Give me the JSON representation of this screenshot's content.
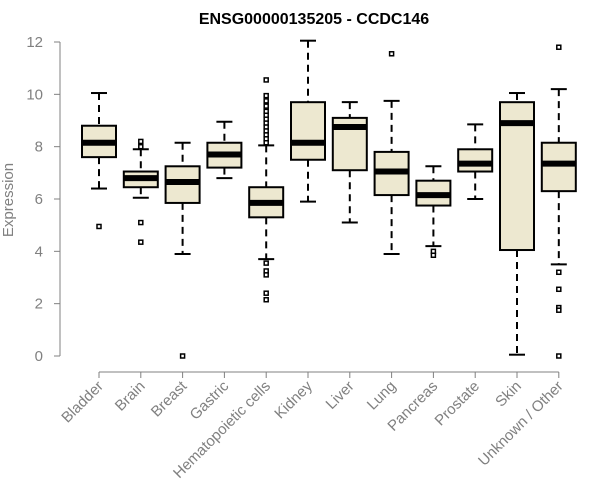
{
  "chart_data": {
    "type": "box",
    "title": "ENSG00000135205 - CCDC146",
    "xlabel": "",
    "ylabel": "Expression",
    "ylim": [
      0,
      12
    ],
    "yticks": [
      0,
      2,
      4,
      6,
      8,
      10,
      12
    ],
    "grid": false,
    "legend": "none",
    "colors": {
      "box_fill": "#ede8d0",
      "stroke": "#000000",
      "axis": "#808080"
    },
    "categories": [
      "Bladder",
      "Brain",
      "Breast",
      "Gastric",
      "Hematopoietic cells",
      "Kidney",
      "Liver",
      "Lung",
      "Pancreas",
      "Prostate",
      "Skin",
      "Unknown / Other"
    ],
    "boxes": [
      {
        "name": "Bladder",
        "whisker_low": 6.4,
        "q1": 7.6,
        "median": 8.15,
        "q3": 8.8,
        "whisker_high": 10.05,
        "outliers": [
          4.95
        ]
      },
      {
        "name": "Brain",
        "whisker_low": 6.05,
        "q1": 6.45,
        "median": 6.8,
        "q3": 7.05,
        "whisker_high": 7.9,
        "outliers": [
          8.2,
          8.0,
          5.1,
          4.35
        ]
      },
      {
        "name": "Breast",
        "whisker_low": 3.9,
        "q1": 5.85,
        "median": 6.65,
        "q3": 7.25,
        "whisker_high": 8.15,
        "outliers": [
          0.0
        ]
      },
      {
        "name": "Gastric",
        "whisker_low": 6.8,
        "q1": 7.2,
        "median": 7.7,
        "q3": 8.15,
        "whisker_high": 8.95,
        "outliers": []
      },
      {
        "name": "Hematopoietic cells",
        "whisker_low": 3.7,
        "q1": 5.3,
        "median": 5.85,
        "q3": 6.45,
        "whisker_high": 8.05,
        "outliers": [
          10.55,
          9.95,
          9.75,
          9.55,
          9.35,
          9.2,
          9.05,
          8.9,
          8.75,
          8.6,
          8.45,
          8.3,
          8.15,
          3.55,
          3.25,
          3.1,
          2.4,
          2.15
        ]
      },
      {
        "name": "Kidney",
        "whisker_low": 5.9,
        "q1": 7.5,
        "median": 8.15,
        "q3": 9.7,
        "whisker_high": 12.05,
        "outliers": []
      },
      {
        "name": "Liver",
        "whisker_low": 5.1,
        "q1": 7.1,
        "median": 8.75,
        "q3": 9.1,
        "whisker_high": 9.7,
        "outliers": []
      },
      {
        "name": "Lung",
        "whisker_low": 3.9,
        "q1": 6.15,
        "median": 7.05,
        "q3": 7.8,
        "whisker_high": 9.75,
        "outliers": [
          11.55
        ]
      },
      {
        "name": "Pancreas",
        "whisker_low": 4.2,
        "q1": 5.75,
        "median": 6.15,
        "q3": 6.7,
        "whisker_high": 7.25,
        "outliers": [
          4.0,
          3.85
        ]
      },
      {
        "name": "Prostate",
        "whisker_low": 6.0,
        "q1": 7.05,
        "median": 7.35,
        "q3": 7.9,
        "whisker_high": 8.85,
        "outliers": []
      },
      {
        "name": "Skin",
        "whisker_low": 0.05,
        "q1": 4.05,
        "median": 8.9,
        "q3": 9.7,
        "whisker_high": 10.05,
        "outliers": []
      },
      {
        "name": "Unknown / Other",
        "whisker_low": 3.5,
        "q1": 6.3,
        "median": 7.35,
        "q3": 8.15,
        "whisker_high": 10.2,
        "outliers": [
          11.8,
          3.2,
          2.55,
          1.85,
          1.75,
          0.0
        ]
      }
    ]
  }
}
